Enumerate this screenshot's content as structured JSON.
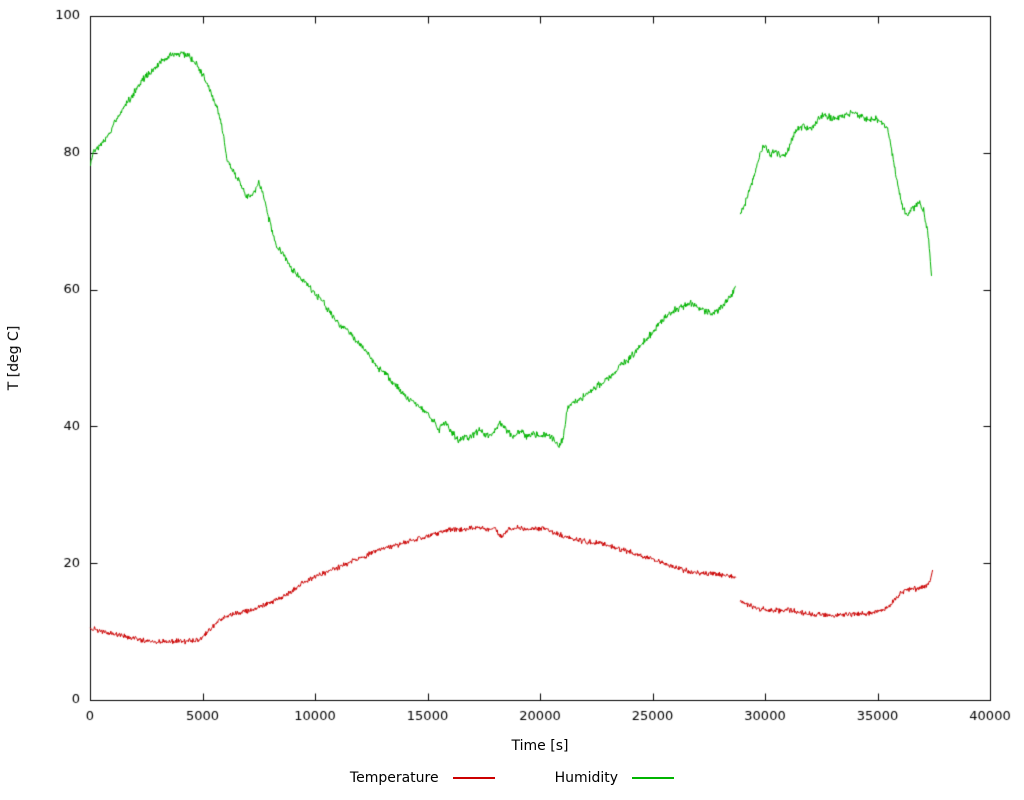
{
  "chart_data": {
    "type": "line",
    "title": "",
    "xlabel": "Time [s]",
    "ylabel": "T [deg C]",
    "xlim": [
      0,
      40000
    ],
    "ylim": [
      0,
      100
    ],
    "x_ticks": [
      0,
      5000,
      10000,
      15000,
      20000,
      25000,
      30000,
      35000,
      40000
    ],
    "y_ticks": [
      0,
      20,
      40,
      60,
      80,
      100
    ],
    "grid": false,
    "legend_position": "bottom-center",
    "frame_color": "#000000",
    "background_color": "#ffffff",
    "series": [
      {
        "name": "Temperature",
        "color": "#cc0000",
        "noise": 0.45,
        "segments": [
          [
            [
              0,
              10.5
            ],
            [
              300,
              10.2
            ],
            [
              600,
              10.0
            ],
            [
              900,
              9.8
            ],
            [
              1200,
              9.6
            ],
            [
              1500,
              9.4
            ],
            [
              1800,
              9.1
            ],
            [
              2100,
              8.9
            ],
            [
              2400,
              8.7
            ],
            [
              2800,
              8.6
            ],
            [
              3300,
              8.6
            ],
            [
              3800,
              8.6
            ],
            [
              4300,
              8.6
            ],
            [
              4800,
              8.8
            ],
            [
              5100,
              9.5
            ],
            [
              5400,
              10.5
            ],
            [
              5700,
              11.5
            ],
            [
              5900,
              11.8
            ],
            [
              6100,
              12.2
            ],
            [
              6400,
              12.6
            ],
            [
              6700,
              12.8
            ],
            [
              7000,
              13.0
            ],
            [
              7300,
              13.3
            ],
            [
              7600,
              13.8
            ],
            [
              7900,
              14.2
            ],
            [
              8200,
              14.5
            ],
            [
              8500,
              15.0
            ],
            [
              8800,
              15.5
            ],
            [
              9100,
              16.2
            ],
            [
              9400,
              17.0
            ],
            [
              9700,
              17.6
            ],
            [
              10000,
              18.0
            ],
            [
              10400,
              18.5
            ],
            [
              10800,
              19.0
            ],
            [
              11200,
              19.6
            ],
            [
              11600,
              20.2
            ],
            [
              12000,
              20.8
            ],
            [
              12400,
              21.3
            ],
            [
              12800,
              21.8
            ],
            [
              13200,
              22.2
            ],
            [
              13600,
              22.6
            ],
            [
              14000,
              23.0
            ],
            [
              14400,
              23.4
            ],
            [
              14800,
              23.8
            ],
            [
              15200,
              24.2
            ],
            [
              15600,
              24.6
            ],
            [
              16000,
              25.0
            ],
            [
              16400,
              24.8
            ],
            [
              16800,
              25.0
            ],
            [
              17200,
              25.2
            ],
            [
              17600,
              25.0
            ],
            [
              18000,
              25.0
            ],
            [
              18300,
              23.8
            ],
            [
              18600,
              25.0
            ],
            [
              19000,
              25.2
            ],
            [
              19400,
              25.0
            ],
            [
              19800,
              25.1
            ],
            [
              20200,
              25.0
            ],
            [
              20600,
              24.6
            ],
            [
              21000,
              24.0
            ],
            [
              21400,
              23.6
            ],
            [
              21800,
              23.3
            ],
            [
              22200,
              23.1
            ],
            [
              22600,
              23.0
            ],
            [
              23000,
              22.6
            ],
            [
              23400,
              22.2
            ],
            [
              23800,
              21.8
            ],
            [
              24200,
              21.4
            ],
            [
              24600,
              21.0
            ],
            [
              25000,
              20.6
            ],
            [
              25400,
              20.1
            ],
            [
              25800,
              19.6
            ],
            [
              26200,
              19.1
            ],
            [
              26600,
              18.8
            ],
            [
              27000,
              18.6
            ],
            [
              27400,
              18.5
            ],
            [
              27800,
              18.4
            ],
            [
              28200,
              18.3
            ],
            [
              28700,
              17.9
            ]
          ],
          [
            [
              28900,
              14.5
            ],
            [
              29200,
              14.0
            ],
            [
              29500,
              13.6
            ],
            [
              29800,
              13.3
            ],
            [
              30100,
              13.2
            ],
            [
              30400,
              13.1
            ],
            [
              30700,
              13.0
            ],
            [
              31000,
              13.2
            ],
            [
              31300,
              13.0
            ],
            [
              31600,
              12.8
            ],
            [
              31900,
              12.6
            ],
            [
              32200,
              12.5
            ],
            [
              32500,
              12.5
            ],
            [
              32800,
              12.4
            ],
            [
              33100,
              12.3
            ],
            [
              33400,
              12.4
            ],
            [
              33700,
              12.5
            ],
            [
              34000,
              12.5
            ],
            [
              34300,
              12.6
            ],
            [
              34600,
              12.7
            ],
            [
              34900,
              13.0
            ],
            [
              35200,
              13.2
            ],
            [
              35500,
              13.6
            ],
            [
              35800,
              14.8
            ],
            [
              36000,
              15.6
            ],
            [
              36200,
              16.0
            ],
            [
              36400,
              16.2
            ],
            [
              36600,
              16.3
            ],
            [
              36800,
              16.2
            ],
            [
              37000,
              16.4
            ],
            [
              37200,
              16.8
            ],
            [
              37350,
              17.5
            ],
            [
              37450,
              19.0
            ]
          ]
        ]
      },
      {
        "name": "Humidity",
        "color": "#00b400",
        "noise": 0.6,
        "segments": [
          [
            [
              0,
              78.0
            ],
            [
              150,
              80.0
            ],
            [
              400,
              81.0
            ],
            [
              700,
              82.0
            ],
            [
              900,
              83.0
            ],
            [
              1100,
              84.5
            ],
            [
              1400,
              86.0
            ],
            [
              1700,
              87.5
            ],
            [
              2000,
              89.0
            ],
            [
              2300,
              90.5
            ],
            [
              2600,
              91.5
            ],
            [
              2900,
              92.5
            ],
            [
              3200,
              93.5
            ],
            [
              3500,
              94.0
            ],
            [
              3800,
              94.5
            ],
            [
              4100,
              94.5
            ],
            [
              4400,
              94.0
            ],
            [
              4700,
              93.0
            ],
            [
              5000,
              91.5
            ],
            [
              5300,
              89.5
            ],
            [
              5600,
              87.0
            ],
            [
              5800,
              85.0
            ],
            [
              5950,
              82.0
            ],
            [
              6100,
              79.0
            ],
            [
              6300,
              77.5
            ],
            [
              6500,
              76.5
            ],
            [
              6700,
              75.5
            ],
            [
              6900,
              74.0
            ],
            [
              7100,
              73.5
            ],
            [
              7300,
              74.5
            ],
            [
              7500,
              75.5
            ],
            [
              7700,
              74.0
            ],
            [
              7900,
              71.0
            ],
            [
              8100,
              68.5
            ],
            [
              8300,
              66.5
            ],
            [
              8500,
              65.5
            ],
            [
              8700,
              64.5
            ],
            [
              9000,
              63.0
            ],
            [
              9300,
              62.0
            ],
            [
              9600,
              61.0
            ],
            [
              10000,
              59.5
            ],
            [
              10400,
              58.0
            ],
            [
              10800,
              56.0
            ],
            [
              11200,
              54.5
            ],
            [
              11600,
              53.5
            ],
            [
              12000,
              52.0
            ],
            [
              12400,
              50.5
            ],
            [
              12800,
              48.5
            ],
            [
              13200,
              47.5
            ],
            [
              13600,
              46.0
            ],
            [
              14000,
              44.5
            ],
            [
              14400,
              43.5
            ],
            [
              14800,
              42.5
            ],
            [
              15200,
              41.0
            ],
            [
              15500,
              39.5
            ],
            [
              15800,
              40.5
            ],
            [
              16100,
              39.0
            ],
            [
              16400,
              38.0
            ],
            [
              16700,
              38.5
            ],
            [
              17000,
              38.5
            ],
            [
              17300,
              39.5
            ],
            [
              17600,
              38.5
            ],
            [
              17900,
              39.0
            ],
            [
              18200,
              40.5
            ],
            [
              18500,
              39.5
            ],
            [
              18800,
              38.5
            ],
            [
              19100,
              39.5
            ],
            [
              19400,
              38.5
            ],
            [
              19700,
              39.0
            ],
            [
              20000,
              38.5
            ],
            [
              20300,
              39.0
            ],
            [
              20600,
              38.0
            ],
            [
              20850,
              37.0
            ],
            [
              21050,
              38.5
            ],
            [
              21200,
              42.5
            ],
            [
              21400,
              43.5
            ],
            [
              21700,
              44.0
            ],
            [
              22000,
              44.5
            ],
            [
              22400,
              45.5
            ],
            [
              22800,
              46.5
            ],
            [
              23200,
              47.5
            ],
            [
              23600,
              49.0
            ],
            [
              24000,
              50.0
            ],
            [
              24400,
              51.5
            ],
            [
              24800,
              53.0
            ],
            [
              25200,
              54.5
            ],
            [
              25600,
              56.0
            ],
            [
              26000,
              57.0
            ],
            [
              26400,
              57.5
            ],
            [
              26700,
              58.0
            ],
            [
              27000,
              57.5
            ],
            [
              27300,
              57.0
            ],
            [
              27600,
              56.5
            ],
            [
              27900,
              57.0
            ],
            [
              28200,
              58.0
            ],
            [
              28500,
              59.0
            ],
            [
              28700,
              60.5
            ]
          ],
          [
            [
              28900,
              71.0
            ],
            [
              29050,
              72.0
            ],
            [
              29200,
              73.5
            ],
            [
              29400,
              75.5
            ],
            [
              29600,
              77.5
            ],
            [
              29800,
              80.0
            ],
            [
              29950,
              81.0
            ],
            [
              30100,
              80.5
            ],
            [
              30250,
              79.5
            ],
            [
              30450,
              80.5
            ],
            [
              30650,
              79.5
            ],
            [
              30850,
              79.5
            ],
            [
              31050,
              80.5
            ],
            [
              31250,
              82.5
            ],
            [
              31450,
              83.5
            ],
            [
              31700,
              84.0
            ],
            [
              31950,
              83.5
            ],
            [
              32200,
              84.0
            ],
            [
              32450,
              85.5
            ],
            [
              32700,
              85.5
            ],
            [
              32950,
              85.0
            ],
            [
              33200,
              85.0
            ],
            [
              33450,
              85.5
            ],
            [
              33700,
              85.5
            ],
            [
              33950,
              86.0
            ],
            [
              34200,
              85.5
            ],
            [
              34450,
              85.0
            ],
            [
              34700,
              85.0
            ],
            [
              34950,
              85.0
            ],
            [
              35200,
              84.5
            ],
            [
              35450,
              83.5
            ],
            [
              35650,
              80.0
            ],
            [
              35850,
              76.0
            ],
            [
              36050,
              73.0
            ],
            [
              36250,
              71.0
            ],
            [
              36450,
              71.5
            ],
            [
              36650,
              72.0
            ],
            [
              36850,
              73.0
            ],
            [
              37050,
              71.5
            ],
            [
              37250,
              68.0
            ],
            [
              37400,
              62.0
            ]
          ]
        ]
      }
    ]
  }
}
